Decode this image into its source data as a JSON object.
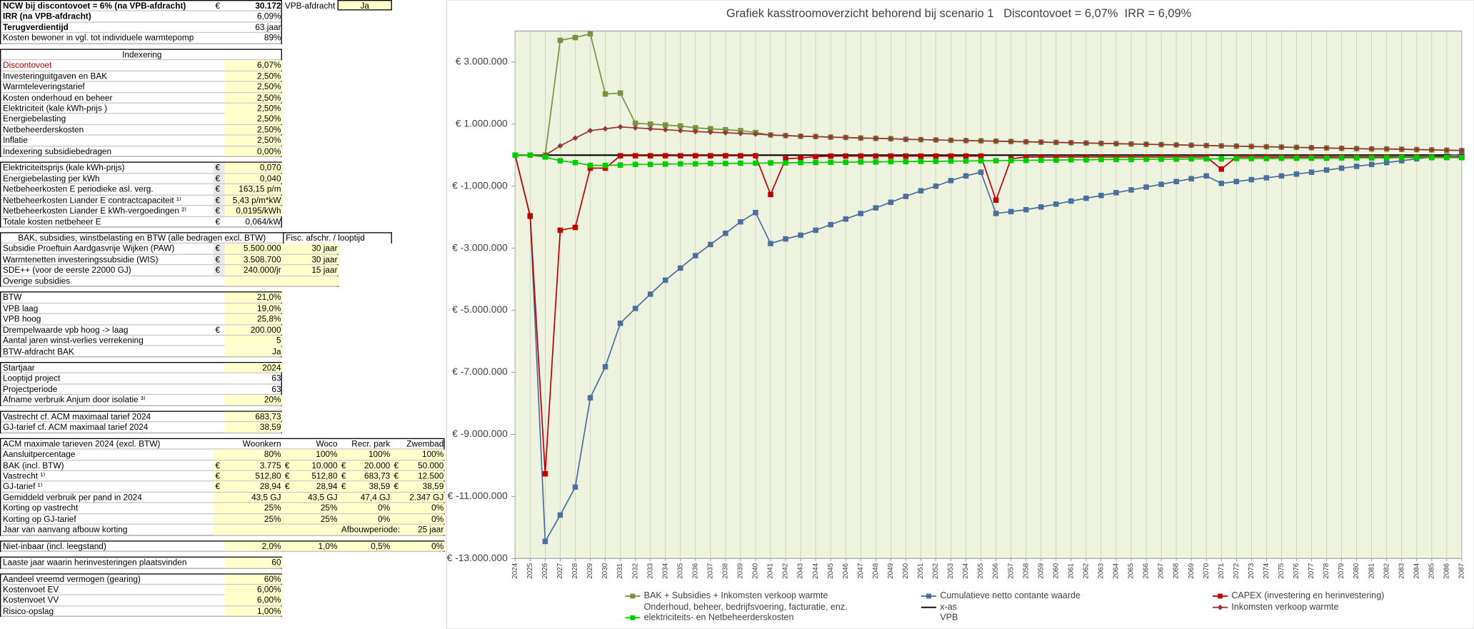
{
  "sheet": {
    "sections": [
      {
        "rows": [
          {
            "label": "NCW bij discontovoet = 6%  (na VPB-afdracht)",
            "cur": "€",
            "value": "30.172",
            "c3": "VPB-afdracht",
            "c4": "Ja"
          },
          {
            "label": "IRR  (na VPB-afdracht)",
            "value": "6,09%"
          },
          {
            "label": "Terugverdientijd",
            "value": "63 jaar"
          },
          {
            "label": "Kosten bewoner in vgl. tot individuele warmtepomp",
            "value": "89%"
          }
        ]
      },
      {
        "rows": [
          {
            "header": "Indexering"
          },
          {
            "label": "Discontovoet",
            "value": "6,07%"
          },
          {
            "label": "Investeringuitgaven en BAK",
            "value": "2,50%"
          },
          {
            "label": "Warmteleveringstarief",
            "value": "2,50%"
          },
          {
            "label": "Kosten onderhoud en beheer",
            "value": "2,50%"
          },
          {
            "label": "Elektriciteit (kale kWh-prijs )",
            "value": "2,50%"
          },
          {
            "label": "Energiebelasting",
            "value": "2,50%"
          },
          {
            "label": "Netbeheerderskosten",
            "value": "2,50%"
          },
          {
            "label": "Inflatie",
            "value": "2,50%"
          },
          {
            "label": "Indexering subsidiebedragen",
            "value": "0,00%"
          }
        ]
      },
      {
        "rows": [
          {
            "label": "Elektriciteitsprijs (kale kWh-prijs)",
            "cur": "€",
            "value": "0,070"
          },
          {
            "label": "Energiebelasting per kWh",
            "cur": "€",
            "value": "0,040"
          },
          {
            "label": "Netbeheerkosten E periodieke asl. verg.",
            "cur": "€",
            "value": "163,15 p/m"
          },
          {
            "label": "Netbeheerkosten Liander E contractcapaciteit ¹⁾",
            "cur": "€",
            "value": "5,43 p/m*kW"
          },
          {
            "label": "Netbeheerkosten Liander E kWh-vergoedingen ²⁾",
            "cur": "€",
            "value": "0,0195/kWh"
          },
          {
            "label": "Totale kosten netbeheer E",
            "cur": "€",
            "value": "0,064/kW"
          }
        ]
      },
      {
        "rows": [
          {
            "header": "BAK, subsidies, winstbelasting en BTW (alle bedragen excl. BTW)",
            "c3": "Fisc. afschr. / looptijd"
          },
          {
            "label": "Subsidie Proeftuin Aardgasvrije Wijken (PAW)",
            "cur": "€",
            "value": "5.500.000",
            "c3": "30 jaar"
          },
          {
            "label": "Warmtenetten investeringssubsidie (WIS)",
            "cur": "€",
            "value": "3.508.700",
            "c3": "30 jaar"
          },
          {
            "label": "SDE++ (voor de eerste 22000 GJ)",
            "cur": "€",
            "value": "240.000/jr",
            "c3": "15 jaar"
          },
          {
            "label": "Overige subsidies"
          }
        ]
      },
      {
        "rows": [
          {
            "label": "BTW",
            "value": "21,0%"
          },
          {
            "label": "VPB laag",
            "value": "19,0%"
          },
          {
            "label": "VPB hoog",
            "value": "25,8%"
          },
          {
            "label": "Drempelwaarde vpb hoog -> laag",
            "cur": "€",
            "value": "200.000"
          },
          {
            "label": "Aantal jaren winst-verlies verrekening",
            "value": "5"
          },
          {
            "label": "BTW-afdracht BAK",
            "value": "Ja"
          }
        ]
      },
      {
        "rows": [
          {
            "label": "Startjaar",
            "value": "2024"
          },
          {
            "label": "Looptijd project",
            "value": "63"
          },
          {
            "label": "Projectperiode",
            "value": "63"
          },
          {
            "label": "Afname verbruik Anjum door isolatie ³⁾",
            "value": "20%"
          }
        ]
      },
      {
        "rows": [
          {
            "label": "Vastrecht cf. ACM maximaal tarief 2024",
            "value": "683,73"
          },
          {
            "label": "GJ-tarief cf. ACM maximaal tarief 2024",
            "value": "38,59"
          }
        ]
      },
      {
        "rows": [
          {
            "label": "ACM maximale tarieven 2024 (excl. BTW)",
            "value": "Woonkern",
            "c3": "Woco",
            "c4": "Recr. park",
            "c5": "Zwembad"
          },
          {
            "label": "Aansluitpercentage",
            "value": "80%",
            "c3": "100%",
            "c4": "100%",
            "c5": "100%"
          },
          {
            "label": "BAK (incl. BTW)",
            "cur": "€",
            "value": "3.775",
            "cur3": "€",
            "c3": "10.000",
            "cur4": "€",
            "c4": "20.000",
            "cur5": "€",
            "c5": "50.000"
          },
          {
            "label": "Vastrecht ¹⁾",
            "cur": "€",
            "value": "512,80",
            "cur3": "€",
            "c3": "512,80",
            "cur4": "€",
            "c4": "683,73",
            "cur5": "€",
            "c5": "12.500"
          },
          {
            "label": "GJ-tarief ¹⁾",
            "cur": "€",
            "value": "28,94",
            "cur3": "€",
            "c3": "28,94",
            "cur4": "€",
            "c4": "38,59",
            "cur5": "€",
            "c5": "38,59"
          },
          {
            "label": "Gemiddeld verbruik per pand in 2024",
            "value": "43,5 GJ",
            "c3": "43,5 GJ",
            "c4": "47,4 GJ",
            "c5": "2.347 GJ"
          },
          {
            "label": "Korting op vastrecht",
            "value": "25%",
            "c3": "25%",
            "c4": "0%",
            "c5": "0%"
          },
          {
            "label": "Korting op GJ-tarief",
            "value": "25%",
            "c3": "25%",
            "c4": "0%",
            "c5": "0%"
          },
          {
            "label": "Jaar van aanvang afbouw korting",
            "c4": "Afbouwperiode:",
            "c5": "25 jaar"
          }
        ]
      },
      {
        "rows": [
          {
            "label": "Niet-inbaar (incl. leegstand)",
            "value": "2,0%",
            "c3": "1,0%",
            "c4": "0,5%",
            "c5": "0%"
          }
        ]
      },
      {
        "rows": [
          {
            "label": "Laaste jaar waarin herinvesteringen plaatsvinden",
            "value": "60"
          }
        ]
      },
      {
        "rows": [
          {
            "label": "Aandeel vreemd vermogen (gearing)",
            "value": "60%"
          },
          {
            "label": "Kostenvoet EV",
            "value": "6,00%"
          },
          {
            "label": "Kostenvoet VV",
            "value": "6,00%"
          },
          {
            "label": "Risico-opslag",
            "value": "1,00%"
          }
        ]
      }
    ]
  },
  "chart_data": {
    "type": "line",
    "title": "Grafiek kasstroomoverzicht behorend bij scenario 1   Discontovoet = 6,07%  IRR = 6,09%",
    "categories": [
      "2024",
      "2025",
      "2026",
      "2027",
      "2028",
      "2029",
      "2030",
      "2031",
      "2032",
      "2033",
      "2034",
      "2035",
      "2036",
      "2037",
      "2038",
      "2039",
      "2040",
      "2041",
      "2042",
      "2043",
      "2044",
      "2045",
      "2046",
      "2047",
      "2048",
      "2049",
      "2050",
      "2051",
      "2052",
      "2053",
      "2054",
      "2055",
      "2056",
      "2057",
      "2058",
      "2059",
      "2060",
      "2061",
      "2062",
      "2063",
      "2064",
      "2065",
      "2066",
      "2067",
      "2068",
      "2069",
      "2070",
      "2071",
      "2072",
      "2073",
      "2074",
      "2075",
      "2076",
      "2077",
      "2078",
      "2079",
      "2080",
      "2081",
      "2082",
      "2083",
      "2084",
      "2085",
      "2086",
      "2087"
    ],
    "ylim": [
      -13000000,
      4000000
    ],
    "yticks": [
      {
        "value": -13000000,
        "label": "€ -13.000.000"
      },
      {
        "value": -11000000,
        "label": "€ -11.000.000"
      },
      {
        "value": -9000000,
        "label": "€ -9.000.000"
      },
      {
        "value": -7000000,
        "label": "€ -7.000.000"
      },
      {
        "value": -5000000,
        "label": "€ -5.000.000"
      },
      {
        "value": -3000000,
        "label": "€ -3.000.000"
      },
      {
        "value": -1000000,
        "label": "€ -1.000.000"
      },
      {
        "value": 1000000,
        "label": "€ 1.000.000"
      },
      {
        "value": 3000000,
        "label": "€ 3.000.000"
      }
    ],
    "grid": "x",
    "legend": "bottom",
    "series": [
      {
        "name": "BAK + Subsidies + Inkomsten verkoop warmte",
        "color": "#77933c",
        "marker": "square",
        "values": [
          0,
          0,
          0,
          3700000,
          3790000,
          3910000,
          1970000,
          2000000,
          1030000,
          1000000,
          970000,
          940000,
          880000,
          850000,
          820000,
          790000,
          730000,
          650000,
          630000,
          610000,
          600000,
          580000,
          570000,
          550000,
          540000,
          530000,
          510000,
          500000,
          490000,
          480000,
          470000,
          460000,
          450000,
          440000,
          430000,
          420000,
          410000,
          400000,
          390000,
          380000,
          370000,
          360000,
          350000,
          340000,
          330000,
          320000,
          310000,
          300000,
          290000,
          280000,
          270000,
          260000,
          250000,
          240000,
          230000,
          220000,
          210000,
          200000,
          200000,
          190000,
          180000,
          170000,
          160000,
          150000
        ]
      },
      {
        "name": "Cumulatieve netto contante waarde",
        "color": "#4a6f9e",
        "marker": "square",
        "values": [
          0,
          -1950000,
          -12450000,
          -11600000,
          -10700000,
          -7820000,
          -6820000,
          -5420000,
          -4940000,
          -4480000,
          -4030000,
          -3640000,
          -3240000,
          -2880000,
          -2520000,
          -2150000,
          -1850000,
          -2850000,
          -2700000,
          -2580000,
          -2420000,
          -2240000,
          -2060000,
          -1880000,
          -1700000,
          -1520000,
          -1330000,
          -1150000,
          -1000000,
          -820000,
          -670000,
          -550000,
          -1880000,
          -1820000,
          -1760000,
          -1670000,
          -1580000,
          -1480000,
          -1390000,
          -1300000,
          -1210000,
          -1120000,
          -1030000,
          -940000,
          -850000,
          -760000,
          -670000,
          -910000,
          -850000,
          -790000,
          -730000,
          -670000,
          -610000,
          -550000,
          -480000,
          -420000,
          -360000,
          -300000,
          -240000,
          -180000,
          -120000,
          -60000,
          -30000,
          30000
        ]
      },
      {
        "name": "CAPEX (investering en herinvestering)",
        "color": "#c00000",
        "marker": "square",
        "values": [
          0,
          -1970000,
          -10270000,
          -2420000,
          -2330000,
          -420000,
          -420000,
          -20000,
          -20000,
          -20000,
          -20000,
          -20000,
          -20000,
          -20000,
          -20000,
          -20000,
          -20000,
          -1270000,
          -120000,
          -90000,
          -50000,
          -30000,
          -30000,
          -30000,
          -30000,
          -30000,
          -30000,
          -30000,
          -30000,
          -30000,
          -30000,
          -30000,
          -1450000,
          -120000,
          -60000,
          -60000,
          -60000,
          -60000,
          -60000,
          -60000,
          -60000,
          -60000,
          -60000,
          -60000,
          -60000,
          -60000,
          -60000,
          -450000,
          -60000,
          -60000,
          -60000,
          -60000,
          -60000,
          -60000,
          -60000,
          -60000,
          -60000,
          -60000,
          -60000,
          -60000,
          -60000,
          -60000,
          -60000,
          -60000
        ]
      },
      {
        "name": "Onderhoud, beheer, bedrijfsvoering, facturatie, enz."
      },
      {
        "name": "x-as",
        "color": "#000000",
        "marker": "none",
        "values": [
          0,
          0,
          0,
          0,
          0,
          0,
          0,
          0,
          0,
          0,
          0,
          0,
          0,
          0,
          0,
          0,
          0,
          0,
          0,
          0,
          0,
          0,
          0,
          0,
          0,
          0,
          0,
          0,
          0,
          0,
          0,
          0,
          0,
          0,
          0,
          0,
          0,
          0,
          0,
          0,
          0,
          0,
          0,
          0,
          0,
          0,
          0,
          0,
          0,
          0,
          0,
          0,
          0,
          0,
          0,
          0,
          0,
          0,
          0,
          0,
          0,
          0,
          0,
          0
        ]
      },
      {
        "name": "Inkomsten verkoop warmte",
        "color": "#953735",
        "marker": "diamond",
        "values": [
          0,
          0,
          0,
          300000,
          550000,
          790000,
          850000,
          910000,
          880000,
          850000,
          820000,
          790000,
          760000,
          740000,
          720000,
          700000,
          680000,
          650000,
          630000,
          610000,
          600000,
          580000,
          570000,
          550000,
          540000,
          530000,
          510000,
          500000,
          490000,
          480000,
          470000,
          460000,
          450000,
          440000,
          430000,
          420000,
          410000,
          400000,
          390000,
          380000,
          370000,
          360000,
          350000,
          340000,
          330000,
          320000,
          310000,
          300000,
          290000,
          280000,
          270000,
          260000,
          250000,
          240000,
          230000,
          220000,
          210000,
          200000,
          200000,
          190000,
          180000,
          170000,
          160000,
          150000
        ]
      },
      {
        "name": "elektriciteits- en Netbeheerderskosten",
        "color": "#00cc00",
        "marker": "square",
        "values": [
          0,
          0,
          -60000,
          -180000,
          -240000,
          -330000,
          -330000,
          -320000,
          -300000,
          -300000,
          -290000,
          -280000,
          -280000,
          -270000,
          -270000,
          -260000,
          -260000,
          -250000,
          -250000,
          -240000,
          -240000,
          -230000,
          -230000,
          -220000,
          -220000,
          -210000,
          -210000,
          -200000,
          -200000,
          -190000,
          -190000,
          -180000,
          -180000,
          -170000,
          -170000,
          -160000,
          -160000,
          -150000,
          -150000,
          -140000,
          -140000,
          -140000,
          -130000,
          -130000,
          -130000,
          -120000,
          -120000,
          -120000,
          -110000,
          -110000,
          -110000,
          -100000,
          -100000,
          -100000,
          -100000,
          -90000,
          -90000,
          -90000,
          -90000,
          -80000,
          -80000,
          -80000,
          -80000,
          -80000
        ]
      },
      {
        "name": "VPB"
      }
    ]
  }
}
